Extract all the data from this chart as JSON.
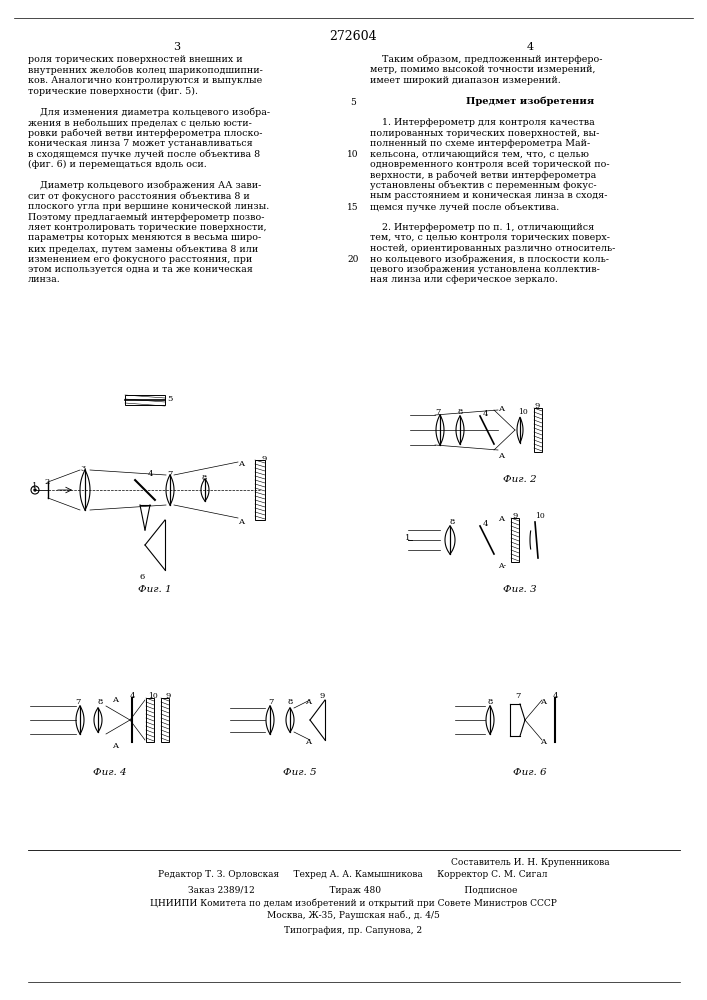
{
  "title_number": "272604",
  "page_numbers": [
    "3",
    "4"
  ],
  "background_color": "#ffffff",
  "text_color": "#000000",
  "fig_labels": [
    "Фиг. 1",
    "Фиг. 2",
    "Фиг. 3",
    "Фиг. 4",
    "Фиг. 5",
    "Фиг. 6"
  ],
  "left_column_text": [
    "роля торических поверхностей внешних и",
    "внутренних желобов колец шарикоподшипни-",
    "ков. Аналогично контролируются и выпуклые",
    "торические поверхности (фиг. 5).",
    "",
    "    Для изменения диаметра кольцевого изобра-",
    "жения в небольших пределах с целью юсти-",
    "ровки рабочей ветви интерферометра плоско-",
    "коническая линза 7 может устанавливаться",
    "в сходящемся пучке лучей после объектива 8",
    "(фиг. 6) и перемещаться вдоль оси.",
    "",
    "    Диаметр кольцевого изображения АА зави-",
    "сит от фокусного расстояния объектива 8 и",
    "плоского угла при вершине конической линзы.",
    "Поэтому предлагаемый интерферометр позво-",
    "ляет контролировать торические поверхности,",
    "параметры которых меняются в весьма широ-",
    "ких пределах, путем замены объектива 8 или",
    "изменением его фокусного расстояния, при",
    "этом используется одна и та же коническая",
    "линза."
  ],
  "right_column_text": [
    "    Таким образом, предложенный интерферо-",
    "метр, помимо высокой точности измерений,",
    "имеет широкий диапазон измерений.",
    "",
    "Предмет изобретения",
    "",
    "    1. Интерферометр для контроля качества",
    "полированных торических поверхностей, вы-",
    "полненный по схеме интерферометра Май-",
    "кельсона, отличающийся тем, что, с целью",
    "одновременного контроля всей торической по-",
    "верхности, в рабочей ветви интерферометра",
    "установлены объектив с переменным фокус-",
    "ным расстоянием и коническая линза в сходя-",
    "щемся пучке лучей после объектива.",
    "",
    "    2. Интерферометр по п. 1, отличающийся",
    "тем, что, с целью контроля торических поверх-",
    "ностей, ориентированных различно относитель-",
    "но кольцевого изображения, в плоскости коль-",
    "цевого изображения установлена коллектив-",
    "ная линза или сферическое зеркало."
  ],
  "bottom_text": [
    "Составитель И. Н. Крупенникова",
    "Редактор Т. З. Орловская     Техред А. А. Камышникова     Корректор С. М. Сигал",
    "",
    "Заказ 2389/12                          Тираж 480                             Подписное",
    "ЦНИИПИ Комитета по делам изобретений и открытий при Совете Министров СССР",
    "Москва, Ж-35, Раушская наб., д. 4/5",
    "",
    "Типография, пр. Сапунова, 2"
  ],
  "line_numbers": [
    "5",
    "10",
    "15",
    "20"
  ]
}
